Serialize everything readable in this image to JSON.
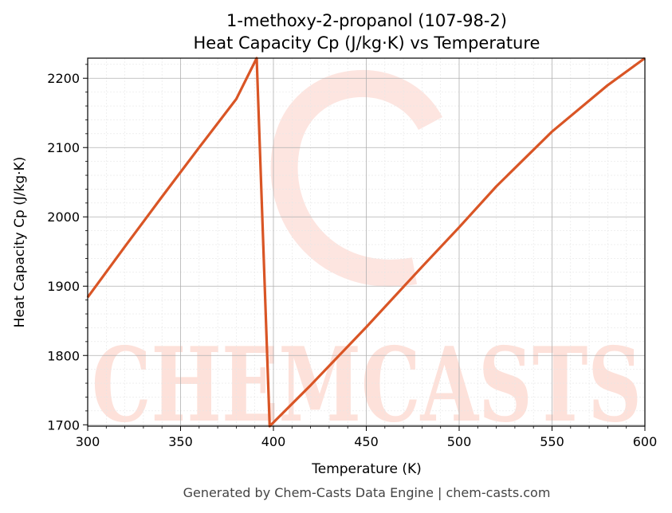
{
  "chart_data": {
    "type": "line",
    "title": [
      "1-methoxy-2-propanol (107-98-2)",
      "Heat Capacity Cp (J/kg·K) vs Temperature"
    ],
    "xlabel": "Temperature (K)",
    "ylabel": "Heat Capacity Cp (J/kg·K)",
    "xlim": [
      300,
      600
    ],
    "ylim": [
      1698,
      2229
    ],
    "x_ticks": [
      300,
      350,
      400,
      450,
      500,
      550,
      600
    ],
    "y_ticks": [
      1700,
      1800,
      1900,
      2000,
      2100,
      2200
    ],
    "grid": true,
    "series": [
      {
        "color": "#d95525",
        "x": [
          300,
          320,
          340,
          360,
          380,
          391,
          398,
          420,
          450,
          480,
          500,
          520,
          550,
          580,
          600
        ],
        "y": [
          1884,
          1957,
          2029,
          2100,
          2170,
          2229,
          1698,
          1757,
          1841,
          1928,
          1985,
          2044,
          2123,
          2190,
          2229
        ]
      }
    ]
  },
  "watermark": {
    "text": "CHEMCASTS"
  },
  "footer": "Generated by Chem-Casts Data Engine | chem-casts.com"
}
